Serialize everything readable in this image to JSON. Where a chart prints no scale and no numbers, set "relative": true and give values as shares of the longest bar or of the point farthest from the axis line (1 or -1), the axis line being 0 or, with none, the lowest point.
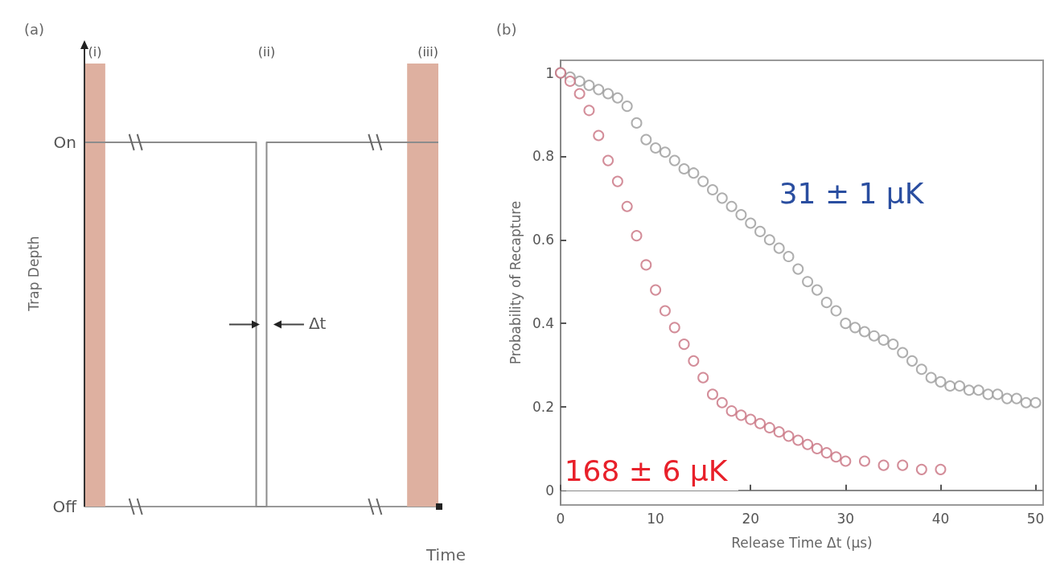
{
  "chart_data": [
    {
      "type": "step",
      "title": "(a)",
      "xlabel": "Time",
      "ylabel": "Trap Depth",
      "categories": [
        null,
        null,
        null,
        null,
        null,
        null,
        null,
        null,
        null,
        null,
        null,
        null,
        null,
        null,
        null,
        null,
        null,
        null,
        null,
        null,
        null,
        null,
        null,
        null,
        null,
        null,
        null,
        null,
        null,
        null,
        null,
        null,
        null,
        null,
        null
      ],
      "values": [
        1,
        1,
        1,
        1,
        1,
        1,
        1,
        1,
        1,
        1,
        1,
        1,
        1,
        1,
        1,
        1,
        1,
        0,
        1,
        1,
        1,
        1,
        1,
        1,
        1,
        1,
        1,
        1,
        1,
        1,
        1,
        1,
        1,
        1,
        1
      ],
      "color": "#8c8c8c",
      "relative": true,
      "tick_labels": false,
      "marker": "none",
      "annotations": [
        "(i)",
        "(ii)",
        "(iii)",
        "Δt",
        "On",
        "Off"
      ]
    },
    {
      "type": "scatter",
      "title": "(b)",
      "xlabel": "Release Time Δt (μs)",
      "ylabel": "Probability of Recapture",
      "xlim": [
        0,
        50.8
      ],
      "xticks": [
        0,
        10,
        20,
        30,
        40,
        50
      ],
      "ylim": [
        -0.035,
        1.03
      ],
      "yticks": [
        0,
        0.2,
        0.4,
        0.6,
        0.8,
        1
      ],
      "marker": "circle",
      "series": [
        {
          "color": "#9a9a9a",
          "x": [
            0,
            1,
            2,
            3,
            4,
            5,
            6,
            7,
            8,
            9,
            10,
            11,
            12,
            13,
            14,
            15,
            16,
            17,
            18,
            19,
            20,
            21,
            22,
            23,
            24,
            25,
            26,
            27,
            28,
            29,
            30,
            31,
            32,
            33,
            34,
            35,
            36,
            37,
            38,
            39,
            40,
            41,
            42,
            43,
            44,
            45,
            46,
            47,
            48,
            49,
            50
          ],
          "values": [
            1.0,
            0.99,
            0.98,
            0.97,
            0.96,
            0.95,
            0.94,
            0.92,
            0.88,
            0.84,
            0.82,
            0.81,
            0.79,
            0.77,
            0.76,
            0.74,
            0.72,
            0.7,
            0.68,
            0.66,
            0.64,
            0.62,
            0.6,
            0.58,
            0.56,
            0.53,
            0.5,
            0.48,
            0.45,
            0.43,
            0.4,
            0.39,
            0.38,
            0.37,
            0.36,
            0.35,
            0.33,
            0.31,
            0.29,
            0.27,
            0.26,
            0.25,
            0.25,
            0.24,
            0.24,
            0.23,
            0.23,
            0.22,
            0.22,
            0.21,
            0.21
          ]
        },
        {
          "color": "#c87080",
          "x": [
            0,
            1,
            2,
            3,
            4,
            5,
            6,
            7,
            8,
            9,
            10,
            11,
            12,
            13,
            14,
            15,
            16,
            17,
            18,
            19,
            20,
            21,
            22,
            23,
            24,
            25,
            26,
            27,
            28,
            29,
            30,
            32,
            34,
            36,
            38,
            40
          ],
          "values": [
            1.0,
            0.98,
            0.95,
            0.91,
            0.85,
            0.79,
            0.74,
            0.68,
            0.61,
            0.54,
            0.48,
            0.43,
            0.39,
            0.35,
            0.31,
            0.27,
            0.23,
            0.21,
            0.19,
            0.18,
            0.17,
            0.16,
            0.15,
            0.14,
            0.13,
            0.12,
            0.11,
            0.1,
            0.09,
            0.08,
            0.07,
            0.07,
            0.06,
            0.06,
            0.05,
            0.05
          ]
        }
      ],
      "annotations": [
        "31 ± 1 μK",
        "168 ± 6 μK"
      ]
    }
  ]
}
